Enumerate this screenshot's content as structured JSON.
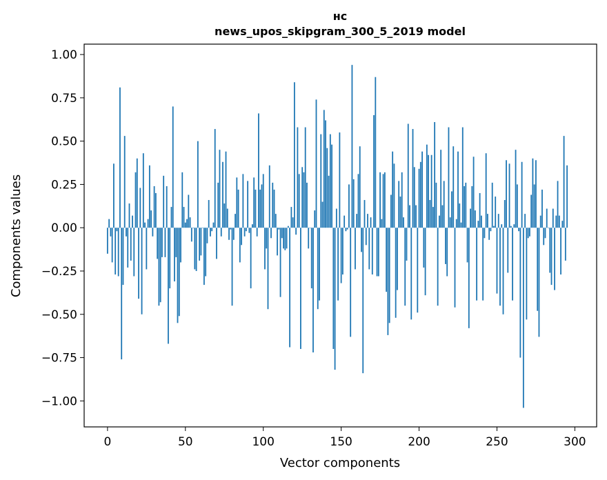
{
  "chart_data": {
    "type": "bar",
    "title_line1": "нс",
    "title_line2": "news_upos_skipgram_300_5_2019 model",
    "xlabel": "Vector components",
    "ylabel": "Components values",
    "xlim": [
      -15,
      314
    ],
    "ylim": [
      -1.15,
      1.06
    ],
    "xticks": [
      0,
      50,
      100,
      150,
      200,
      250,
      300
    ],
    "yticks": [
      1.0,
      0.75,
      0.5,
      0.25,
      0.0,
      -0.25,
      -0.5,
      -0.75,
      -1.0
    ],
    "ytick_labels": [
      "1.00",
      "0.75",
      "0.50",
      "0.25",
      "0.00",
      "−0.25",
      "−0.50",
      "−0.75",
      "−1.00"
    ],
    "bar_color": "#1f77b4",
    "values": [
      -0.15,
      0.05,
      -0.05,
      -0.2,
      0.37,
      -0.27,
      -0.02,
      -0.28,
      0.81,
      -0.76,
      -0.33,
      0.53,
      -0.05,
      -0.23,
      0.14,
      -0.19,
      0.07,
      -0.28,
      0.32,
      0.4,
      -0.41,
      0.23,
      -0.5,
      0.43,
      0.03,
      -0.24,
      0.05,
      0.36,
      0.1,
      -0.05,
      0.24,
      0.2,
      -0.18,
      -0.45,
      -0.43,
      -0.17,
      0.3,
      -0.17,
      0.24,
      -0.67,
      -0.35,
      0.12,
      0.7,
      -0.31,
      -0.17,
      -0.55,
      -0.51,
      -0.2,
      0.32,
      0.12,
      0.03,
      0.05,
      0.19,
      0.06,
      -0.08,
      0.0,
      -0.24,
      -0.25,
      0.5,
      -0.19,
      -0.16,
      0.0,
      -0.33,
      -0.28,
      -0.09,
      0.16,
      -0.05,
      -0.02,
      0.03,
      0.57,
      -0.18,
      0.26,
      0.45,
      -0.05,
      0.38,
      0.14,
      0.44,
      0.11,
      -0.07,
      -0.01,
      -0.45,
      -0.07,
      0.08,
      0.29,
      0.22,
      -0.2,
      -0.1,
      0.31,
      -0.05,
      -0.02,
      0.27,
      -0.03,
      -0.35,
      0.02,
      0.29,
      0.22,
      -0.05,
      0.66,
      0.22,
      0.25,
      0.31,
      -0.24,
      -0.12,
      -0.47,
      0.36,
      -0.06,
      0.26,
      0.22,
      0.08,
      -0.16,
      -0.01,
      -0.4,
      -0.06,
      -0.12,
      -0.13,
      -0.12,
      0.01,
      -0.69,
      0.12,
      0.06,
      0.84,
      -0.04,
      0.58,
      0.31,
      -0.7,
      0.35,
      0.32,
      0.58,
      0.26,
      -0.12,
      0.0,
      -0.35,
      -0.72,
      0.1,
      0.74,
      -0.47,
      -0.42,
      0.54,
      0.15,
      0.68,
      0.62,
      0.46,
      0.3,
      0.54,
      0.48,
      -0.7,
      -0.82,
      0.11,
      -0.42,
      0.55,
      -0.32,
      -0.27,
      0.07,
      -0.02,
      -0.01,
      0.25,
      -0.63,
      0.94,
      0.28,
      -0.24,
      0.08,
      0.31,
      0.47,
      -0.14,
      -0.84,
      0.16,
      -0.1,
      0.08,
      -0.24,
      0.06,
      -0.27,
      0.65,
      0.87,
      -0.28,
      -0.28,
      0.32,
      0.05,
      0.31,
      0.32,
      -0.37,
      -0.62,
      -0.55,
      0.19,
      0.44,
      0.37,
      -0.52,
      -0.36,
      0.27,
      0.18,
      0.32,
      0.06,
      -0.45,
      -0.19,
      0.6,
      0.13,
      -0.53,
      0.57,
      0.35,
      0.13,
      -0.49,
      0.34,
      0.38,
      0.44,
      -0.23,
      -0.39,
      0.48,
      0.42,
      0.16,
      0.42,
      0.12,
      0.61,
      0.26,
      -0.45,
      0.07,
      0.45,
      0.13,
      0.27,
      -0.21,
      -0.28,
      0.58,
      0.06,
      0.21,
      0.47,
      -0.46,
      0.05,
      0.44,
      0.14,
      0.03,
      0.58,
      0.24,
      0.26,
      -0.2,
      -0.58,
      0.11,
      0.24,
      0.41,
      0.1,
      -0.42,
      0.04,
      0.2,
      0.07,
      -0.42,
      -0.06,
      0.43,
      0.08,
      -0.07,
      -0.02,
      0.26,
      0.01,
      0.18,
      -0.38,
      0.08,
      -0.45,
      0.02,
      -0.5,
      0.16,
      0.39,
      -0.26,
      0.37,
      0.01,
      -0.42,
      0.02,
      0.45,
      0.25,
      -0.02,
      -0.75,
      0.38,
      -1.04,
      0.08,
      -0.53,
      -0.06,
      -0.05,
      0.19,
      0.4,
      0.25,
      0.39,
      -0.48,
      -0.63,
      0.07,
      0.22,
      -0.1,
      -0.06,
      0.11,
      0.0,
      -0.26,
      -0.33,
      0.11,
      -0.36,
      0.07,
      0.27,
      0.07,
      -0.27,
      0.04,
      0.53,
      -0.19,
      0.36
    ]
  }
}
